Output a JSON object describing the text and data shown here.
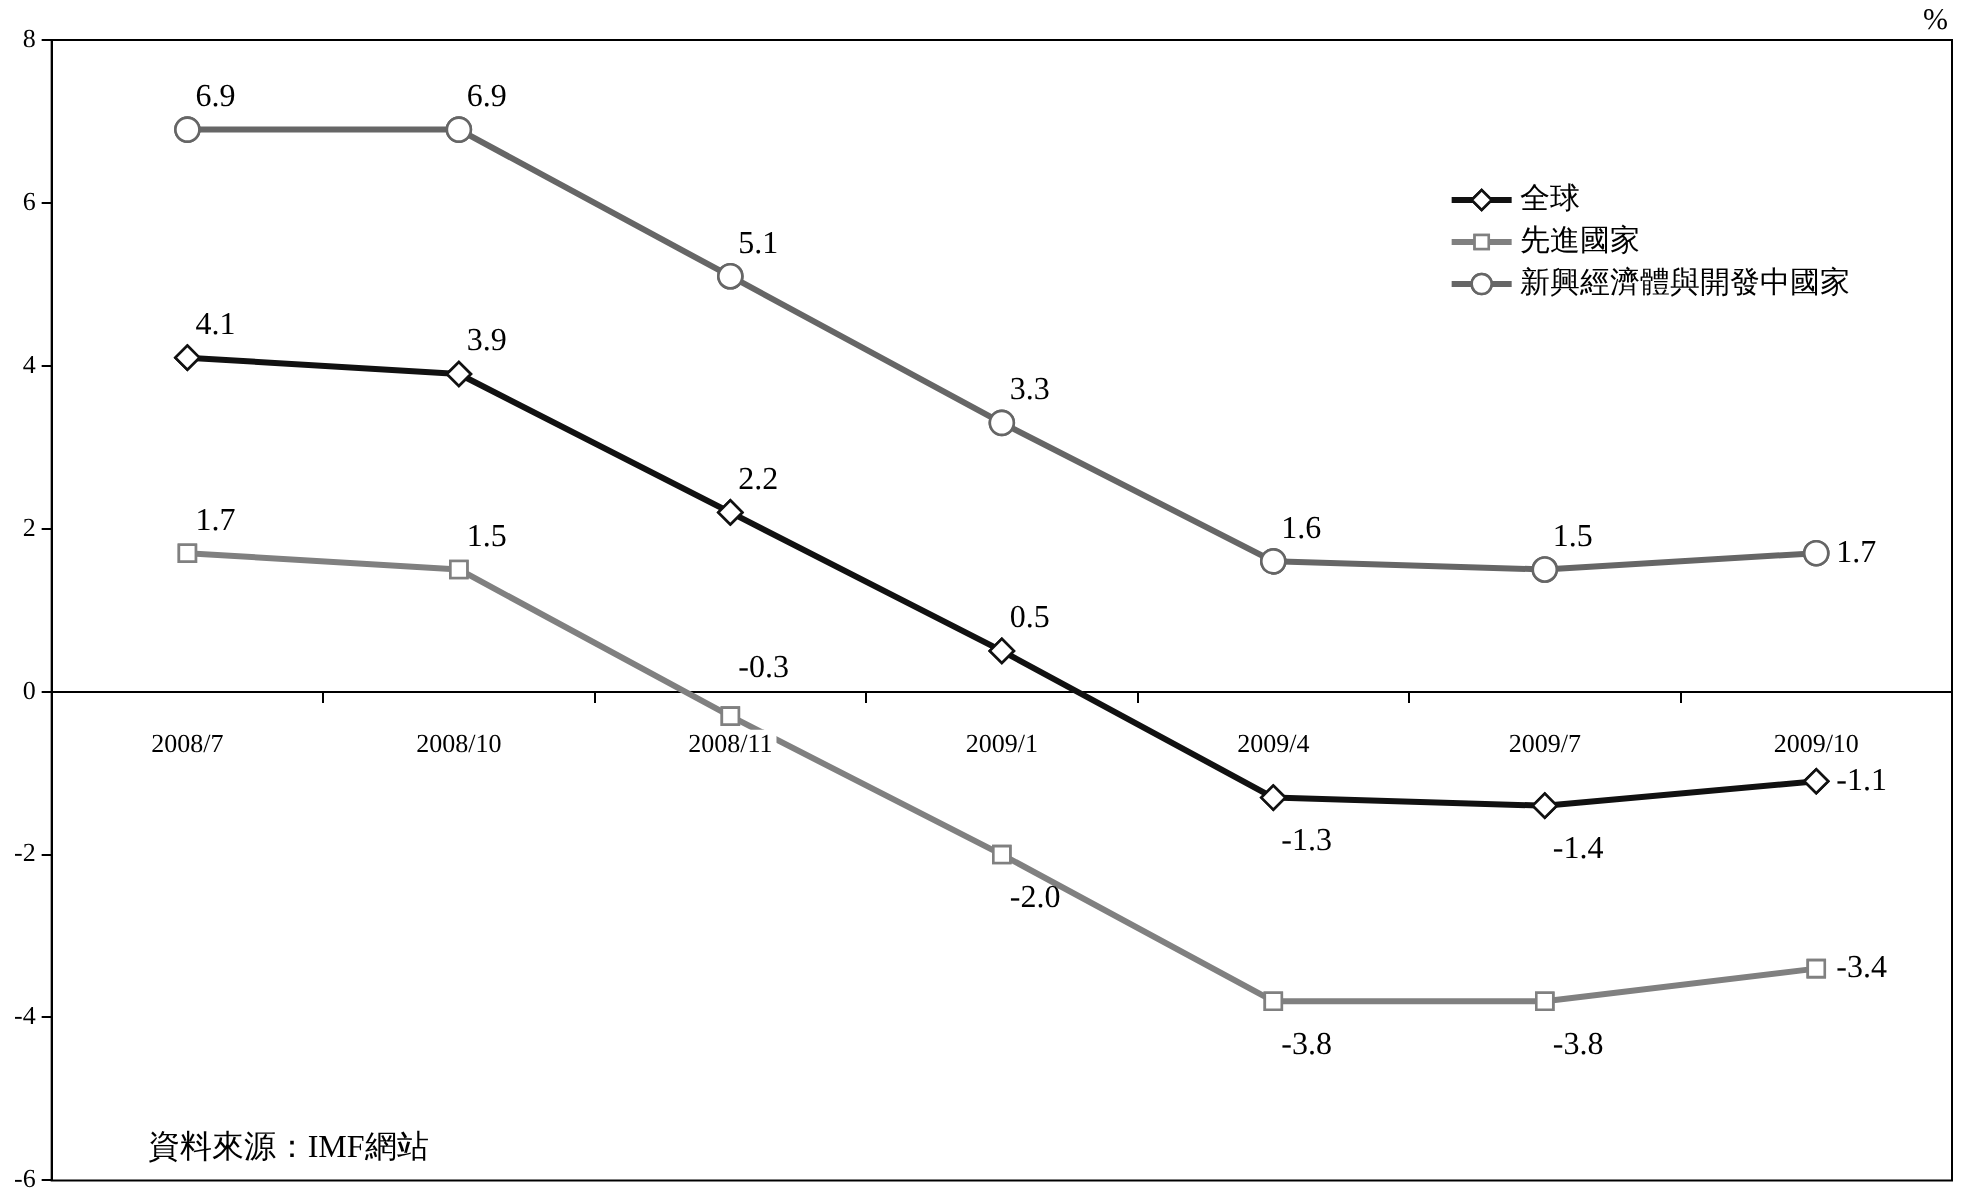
{
  "chart_data": {
    "type": "line",
    "ylabel": "%",
    "categories": [
      "2008/7",
      "2008/10",
      "2008/11",
      "2009/1",
      "2009/4",
      "2009/7",
      "2009/10"
    ],
    "series": [
      {
        "name": "全球",
        "color": "#111111",
        "marker": "diamond",
        "values": [
          4.1,
          3.9,
          2.2,
          0.5,
          -1.3,
          -1.4,
          -1.1
        ],
        "value_labels": [
          "4.1",
          "3.9",
          "2.2",
          "0.5",
          "-1.3",
          "-1.4",
          "-1.1"
        ]
      },
      {
        "name": "先進國家",
        "color": "#808080",
        "marker": "square",
        "values": [
          1.7,
          1.5,
          -0.3,
          -2.0,
          -3.8,
          -3.8,
          -3.4
        ],
        "value_labels": [
          "1.7",
          "1.5",
          "-0.3",
          "-2.0",
          "-3.8",
          "-3.8",
          "-3.4"
        ]
      },
      {
        "name": "新興經濟體與開發中國家",
        "color": "#666666",
        "marker": "circle",
        "values": [
          6.9,
          6.9,
          5.1,
          3.3,
          1.6,
          1.5,
          1.7
        ],
        "value_labels": [
          "6.9",
          "6.9",
          "5.1",
          "3.3",
          "1.6",
          "1.5",
          "1.7"
        ]
      }
    ],
    "ylim": [
      -6,
      8
    ],
    "yticks": [
      -6,
      -4,
      -2,
      0,
      2,
      4,
      6,
      8
    ],
    "grid": false,
    "legend": "top right",
    "annotations": [
      "資料來源：IMF網站"
    ]
  }
}
